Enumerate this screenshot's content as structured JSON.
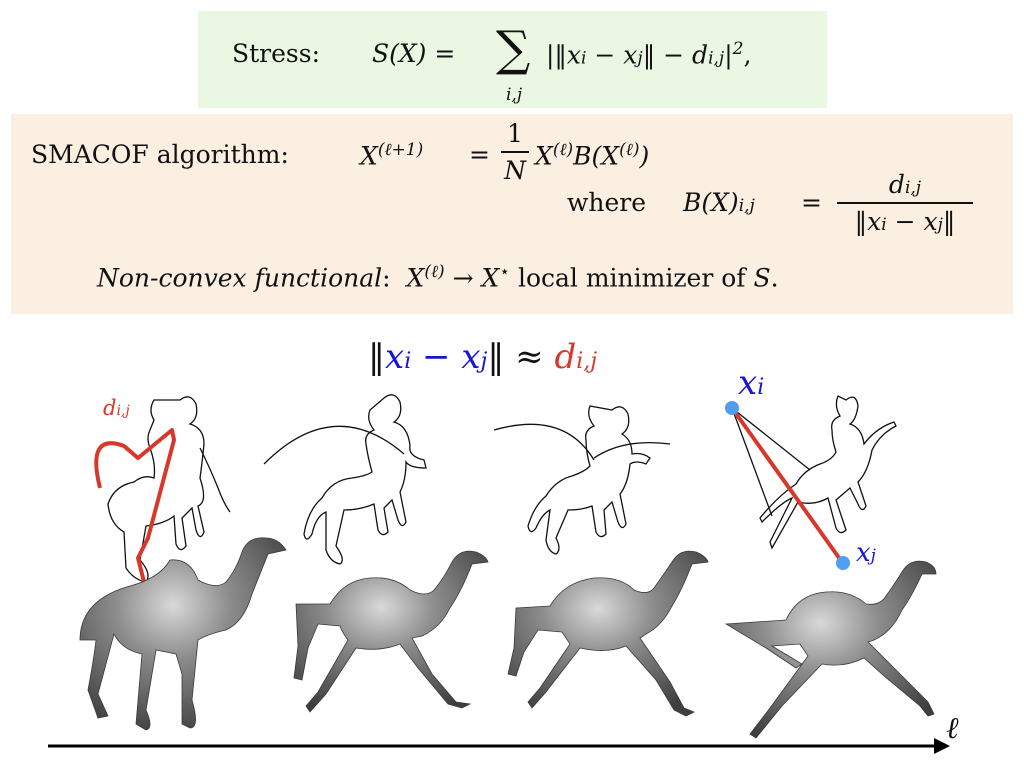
{
  "stress": {
    "label": "Stress:",
    "lhs": "S(X) =",
    "sigma": "∑",
    "sigma_sub": "i,j",
    "rhs_main": "|‖x",
    "rhs_i": "i",
    "rhs_minus": " − x",
    "rhs_j": "j",
    "rhs_mid": "‖ − d",
    "rhs_ij": "i,j",
    "rhs_end": "|",
    "rhs_pow": "2",
    "rhs_comma": ","
  },
  "smacof": {
    "label": "SMACOF algorithm:",
    "lhs": "X",
    "lhs_sup": "(ℓ+1)",
    "equals": "=",
    "frac_num": "1",
    "frac_den": "N",
    "rhs1": "X",
    "rhs1_sup": "(ℓ)",
    "rhs2": "B(X",
    "rhs2_sup": "(ℓ)",
    "rhs2_end": ")",
    "where": "where",
    "b_lhs": "B(X)",
    "b_sub": "i,j",
    "b_eq": "=",
    "b_num": "d",
    "b_num_sub": "i,j",
    "b_den": "‖x",
    "b_den_i": "i",
    "b_den_mid": " − x",
    "b_den_j": "j",
    "b_den_end": "‖",
    "nonconvex": "Non-convex functional",
    "colon": ":",
    "x_l": "X",
    "x_l_sup": "(ℓ)",
    "arrow": "→",
    "x_star": "X",
    "x_star_sup": "⋆",
    "minimizer": "local minimizer of",
    "s": "S",
    "period": "."
  },
  "approx": {
    "open": "‖",
    "xi": "x",
    "xi_sub": "i",
    "minus": " − ",
    "xj": "x",
    "xj_sub": "j",
    "close": "‖",
    "approx": "≈",
    "d": "d",
    "d_sub": "i,j"
  },
  "labels": {
    "d_ij": "d",
    "d_ij_sub": "i,j",
    "x_i": "x",
    "x_i_sub": "i",
    "x_j": "x",
    "x_j_sub": "j",
    "axis": "ℓ"
  },
  "colors": {
    "green_box": "#e9f7e3",
    "orange_box": "#fbefe2",
    "blue": "#1515d6",
    "red": "#d8382c",
    "point_blue": "#4f9ef0",
    "mesh_gray": "#5d5d5d"
  }
}
